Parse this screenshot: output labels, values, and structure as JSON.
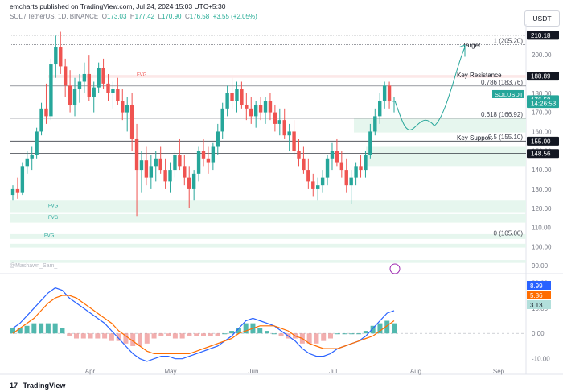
{
  "header": {
    "published": "emcharts published on TradingView.com, Jul 24, 2024 15:03 UTC+5:30",
    "symbol": "SOL / TetherUS, 1D, BINANCE",
    "o_label": "O",
    "o": "173.03",
    "h_label": "H",
    "h": "177.42",
    "l_label": "L",
    "l": "170.90",
    "c_label": "C",
    "c": "176.58",
    "change": "+3.55 (+2.05%)",
    "currency": "USDT",
    "watermark": "@Mashawn_Sam_"
  },
  "footer": {
    "brand": "TradingView",
    "logo_text": "17"
  },
  "chart_data": [
    {
      "type": "candlestick",
      "title": "SOL / TetherUS, 1D, BINANCE",
      "ylim": [
        88,
        216
      ],
      "price_ticks": [
        "210.00",
        "200.00",
        "190.00",
        "180.00",
        "170.00",
        "160.00",
        "150.00",
        "140.00",
        "130.00",
        "120.00",
        "110.00",
        "100.00",
        "90.00"
      ],
      "x_labels": [
        "Apr",
        "May",
        "Jun",
        "Jul",
        "Aug",
        "Sep"
      ],
      "fib_levels": [
        {
          "label": "1 (205.20)",
          "value": 205.2
        },
        {
          "label": "0.786 (183.76)",
          "value": 183.76
        },
        {
          "label": "0.618 (166.92)",
          "value": 166.92
        },
        {
          "label": "0.5 (155.10)",
          "value": 155.1
        },
        {
          "label": "0 (105.00)",
          "value": 105.0
        }
      ],
      "annotations": [
        "Target",
        "Key Resistance",
        "Key Support",
        "FVG",
        "FVG",
        "FVG",
        "FVG"
      ],
      "price_labels": [
        {
          "text": "210.18",
          "value": 210.18
        },
        {
          "text": "188.89",
          "value": 188.89
        },
        {
          "text": "SOLUSDT",
          "value": 179.5
        },
        {
          "text": "176.58",
          "value": 176.58
        },
        {
          "text": "14:26:53",
          "value": 174.6
        },
        {
          "text": "155.00",
          "value": 155.0
        },
        {
          "text": "148.56",
          "value": 148.56
        }
      ],
      "candles": [
        [
          127,
          132,
          124,
          130
        ],
        [
          130,
          136,
          125,
          128
        ],
        [
          128,
          144,
          127,
          142
        ],
        [
          142,
          150,
          138,
          146
        ],
        [
          146,
          152,
          140,
          148
        ],
        [
          148,
          162,
          146,
          160
        ],
        [
          160,
          175,
          158,
          172
        ],
        [
          172,
          185,
          164,
          168
        ],
        [
          168,
          198,
          166,
          195
        ],
        [
          195,
          210,
          188,
          204
        ],
        [
          204,
          212,
          190,
          194
        ],
        [
          194,
          198,
          178,
          184
        ],
        [
          184,
          192,
          170,
          174
        ],
        [
          174,
          188,
          168,
          182
        ],
        [
          182,
          190,
          175,
          186
        ],
        [
          186,
          196,
          180,
          190
        ],
        [
          190,
          200,
          176,
          178
        ],
        [
          178,
          186,
          170,
          183
        ],
        [
          183,
          196,
          180,
          193
        ],
        [
          193,
          198,
          182,
          185
        ],
        [
          185,
          190,
          176,
          180
        ],
        [
          180,
          186,
          172,
          182
        ],
        [
          182,
          188,
          174,
          176
        ],
        [
          176,
          182,
          166,
          170
        ],
        [
          170,
          178,
          160,
          174
        ],
        [
          174,
          180,
          150,
          156
        ],
        [
          156,
          164,
          116,
          140
        ],
        [
          140,
          150,
          128,
          145
        ],
        [
          145,
          152,
          132,
          136
        ],
        [
          136,
          148,
          130,
          142
        ],
        [
          142,
          150,
          134,
          146
        ],
        [
          146,
          152,
          138,
          140
        ],
        [
          140,
          146,
          130,
          134
        ],
        [
          134,
          144,
          128,
          140
        ],
        [
          140,
          150,
          136,
          148
        ],
        [
          148,
          156,
          140,
          142
        ],
        [
          142,
          148,
          132,
          136
        ],
        [
          136,
          142,
          120,
          130
        ],
        [
          130,
          140,
          124,
          138
        ],
        [
          138,
          152,
          134,
          150
        ],
        [
          150,
          156,
          142,
          146
        ],
        [
          146,
          152,
          138,
          144
        ],
        [
          144,
          154,
          140,
          152
        ],
        [
          152,
          164,
          148,
          160
        ],
        [
          160,
          175,
          156,
          172
        ],
        [
          172,
          184,
          168,
          180
        ],
        [
          180,
          188,
          172,
          176
        ],
        [
          176,
          186,
          170,
          182
        ],
        [
          182,
          186,
          172,
          174
        ],
        [
          174,
          180,
          166,
          172
        ],
        [
          172,
          178,
          164,
          168
        ],
        [
          168,
          176,
          162,
          174
        ],
        [
          174,
          178,
          166,
          170
        ],
        [
          170,
          178,
          164,
          176
        ],
        [
          176,
          180,
          166,
          170
        ],
        [
          170,
          174,
          160,
          164
        ],
        [
          164,
          172,
          158,
          166
        ],
        [
          166,
          172,
          156,
          158
        ],
        [
          158,
          164,
          150,
          160
        ],
        [
          160,
          166,
          148,
          150
        ],
        [
          150,
          156,
          142,
          146
        ],
        [
          146,
          152,
          138,
          140
        ],
        [
          140,
          146,
          130,
          134
        ],
        [
          134,
          138,
          126,
          130
        ],
        [
          130,
          136,
          124,
          132
        ],
        [
          132,
          140,
          128,
          136
        ],
        [
          136,
          148,
          132,
          146
        ],
        [
          146,
          154,
          140,
          150
        ],
        [
          150,
          156,
          142,
          144
        ],
        [
          144,
          150,
          136,
          140
        ],
        [
          140,
          146,
          128,
          132
        ],
        [
          132,
          140,
          122,
          136
        ],
        [
          136,
          144,
          132,
          142
        ],
        [
          142,
          148,
          136,
          140
        ],
        [
          140,
          150,
          136,
          148
        ],
        [
          148,
          164,
          146,
          160
        ],
        [
          160,
          172,
          158,
          168
        ],
        [
          168,
          180,
          164,
          176
        ],
        [
          176,
          186,
          172,
          184
        ],
        [
          184,
          186,
          172,
          176
        ],
        [
          176,
          178,
          170,
          176
        ]
      ]
    },
    {
      "type": "line",
      "title": "MACD",
      "ylim": [
        -12,
        22
      ],
      "y_ticks": [
        "20.00",
        "10.00",
        "0.00",
        "-10.00"
      ],
      "series": [
        {
          "values": [
            2,
            4,
            7,
            10,
            13,
            16,
            18,
            17,
            14,
            12,
            10,
            8,
            6,
            4,
            1,
            -2,
            -5,
            -8,
            -10,
            -11,
            -10,
            -9,
            -9,
            -10,
            -10,
            -9,
            -8,
            -7,
            -6,
            -5,
            -3,
            -1,
            2,
            5,
            6,
            5,
            4,
            3,
            1,
            -1,
            -3,
            -6,
            -8,
            -9,
            -9,
            -8,
            -6,
            -5,
            -4,
            -3,
            -1,
            2,
            5,
            8,
            9
          ]
        },
        {
          "values": [
            0,
            2,
            4,
            6,
            9,
            12,
            14,
            15,
            15,
            14,
            12,
            10,
            8,
            6,
            4,
            1,
            -1,
            -3,
            -5,
            -7,
            -8,
            -8,
            -8,
            -8,
            -8,
            -8,
            -7,
            -6,
            -5,
            -4,
            -3,
            -2,
            0,
            1,
            2,
            3,
            3,
            3,
            2,
            1,
            -1,
            -2,
            -4,
            -5,
            -6,
            -6,
            -6,
            -5,
            -4,
            -3,
            -2,
            -1,
            1,
            3,
            5
          ]
        }
      ],
      "value_labels": [
        {
          "text": "8.99",
          "value": 8.99
        },
        {
          "text": "5.86",
          "value": 5.86
        },
        {
          "text": "3.13",
          "value": 3.13
        }
      ]
    }
  ],
  "colors": {
    "up": "#26a69a",
    "down": "#ef5350",
    "macd": "#2962ff",
    "signal": "#ff6d00",
    "zone": "#e6f6ee",
    "fvg_res": "#fce8e8"
  }
}
